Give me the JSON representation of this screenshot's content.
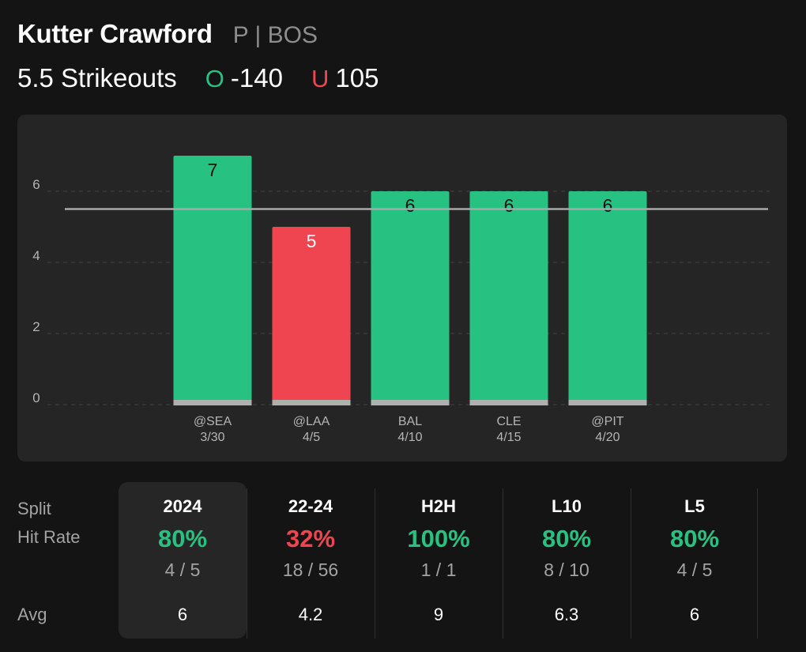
{
  "player": {
    "name": "Kutter Crawford",
    "meta": "P | BOS"
  },
  "prop": {
    "label": "5.5 Strikeouts",
    "over_letter": "O",
    "over_odds": "-140",
    "under_letter": "U",
    "under_odds": "105"
  },
  "colors": {
    "over": "#27c281",
    "under": "#ef4550",
    "threshold_line": "#a8a8a8"
  },
  "chart_data": {
    "type": "bar",
    "title": "",
    "xlabel": "",
    "ylabel": "",
    "ylim": [
      0,
      7.6
    ],
    "yticks": [
      0,
      2,
      4,
      6
    ],
    "threshold": 5.5,
    "categories": [
      {
        "opponent": "@SEA",
        "date": "3/30"
      },
      {
        "opponent": "@LAA",
        "date": "4/5"
      },
      {
        "opponent": "BAL",
        "date": "4/10"
      },
      {
        "opponent": "CLE",
        "date": "4/15"
      },
      {
        "opponent": "@PIT",
        "date": "4/20"
      }
    ],
    "values": [
      7,
      5,
      6,
      6,
      6
    ],
    "results": [
      "over",
      "under",
      "over",
      "over",
      "over"
    ]
  },
  "table": {
    "labels": {
      "split": "Split",
      "hit_rate": "Hit Rate",
      "avg": "Avg"
    },
    "columns": [
      {
        "split": "2024",
        "hit_rate": "80%",
        "fraction": "4 / 5",
        "avg": "6",
        "status": "over",
        "selected": true
      },
      {
        "split": "22-24",
        "hit_rate": "32%",
        "fraction": "18 / 56",
        "avg": "4.2",
        "status": "under",
        "selected": false
      },
      {
        "split": "H2H",
        "hit_rate": "100%",
        "fraction": "1 / 1",
        "avg": "9",
        "status": "over",
        "selected": false
      },
      {
        "split": "L10",
        "hit_rate": "80%",
        "fraction": "8 / 10",
        "avg": "6.3",
        "status": "over",
        "selected": false
      },
      {
        "split": "L5",
        "hit_rate": "80%",
        "fraction": "4 / 5",
        "avg": "6",
        "status": "over",
        "selected": false
      }
    ]
  }
}
